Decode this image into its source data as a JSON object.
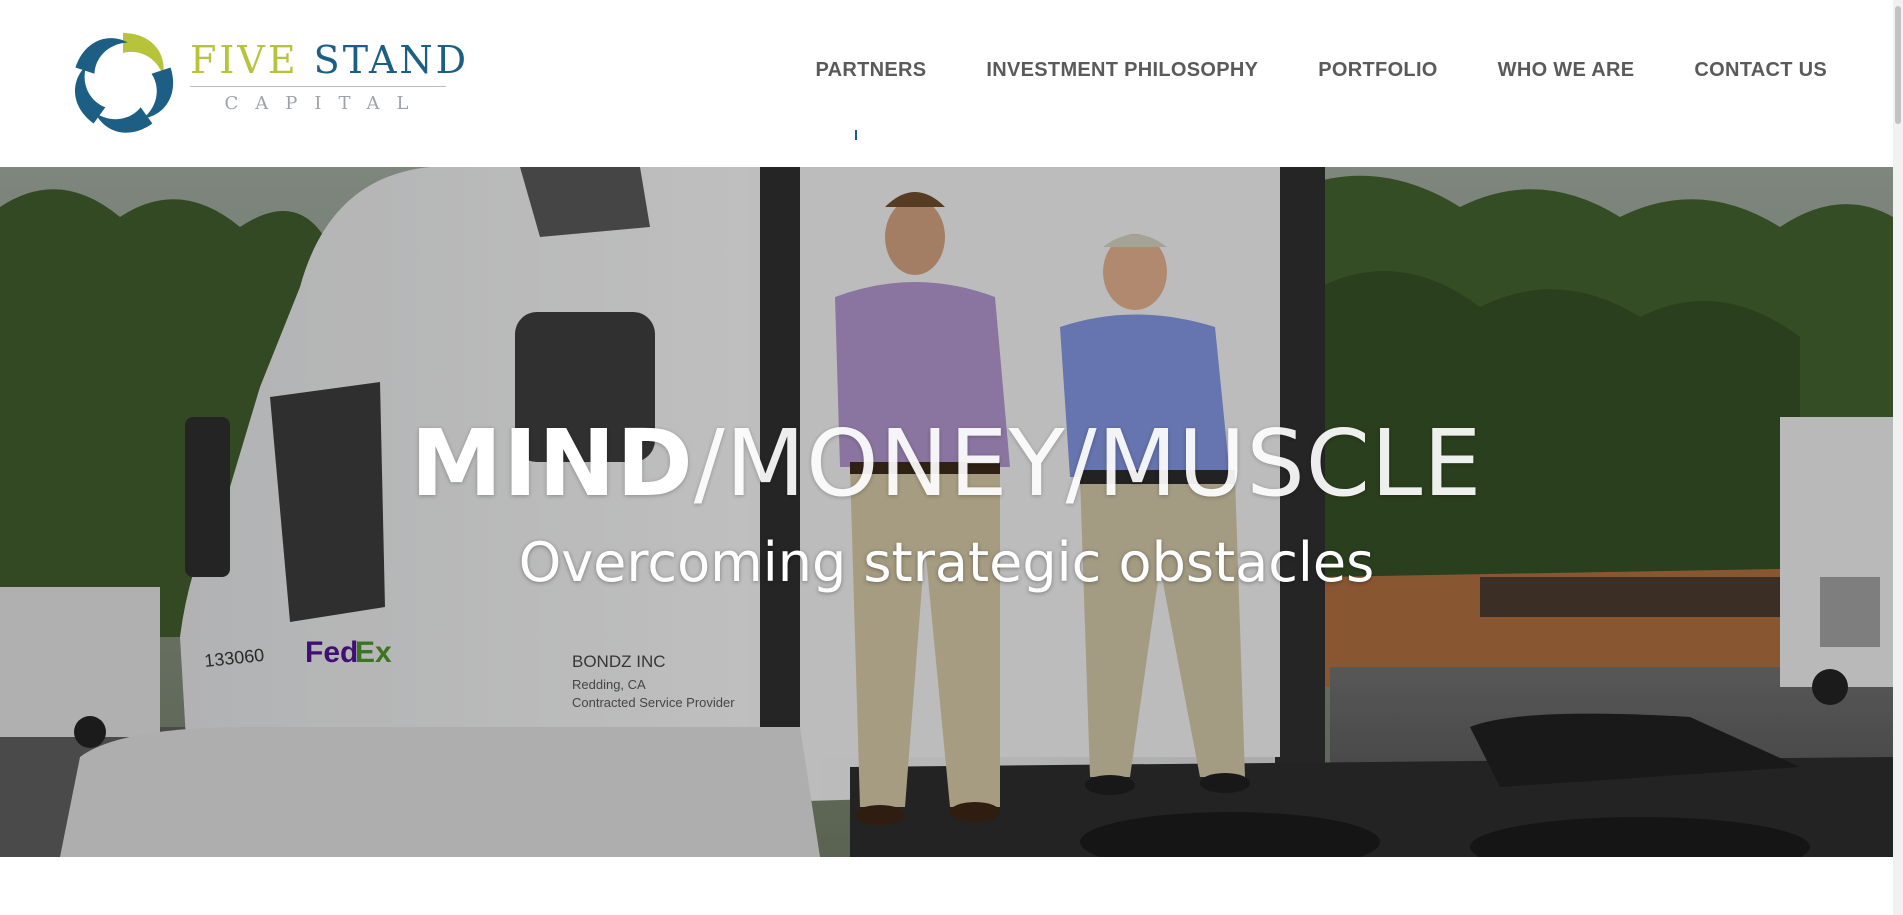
{
  "brand": {
    "name_part1": "FIVE",
    "name_part2": "STAND",
    "sub": "CAPITAL",
    "colors": {
      "lime": "#b7c33a",
      "blue": "#1d5f84",
      "gray": "#9ea3a8"
    },
    "icon": "pinwheel-logo-icon"
  },
  "nav": {
    "items": [
      {
        "label": "PARTNERS"
      },
      {
        "label": "INVESTMENT PHILOSOPHY"
      },
      {
        "label": "PORTFOLIO"
      },
      {
        "label": "WHO WE ARE"
      },
      {
        "label": "CONTACT US"
      }
    ],
    "color": "#5a5a5a"
  },
  "hero": {
    "tagline_bold": "MIND",
    "tagline_rest": "/MONEY/MUSCLE",
    "subtitle": "Overcoming strategic obstacles",
    "image": "photo-two-men-on-white-semi-truck",
    "truck_text": {
      "brand": "FedEx",
      "unit": "133060",
      "company": "BONDZ INC",
      "city": "Redding, CA",
      "role": "Contracted Service Provider"
    }
  }
}
